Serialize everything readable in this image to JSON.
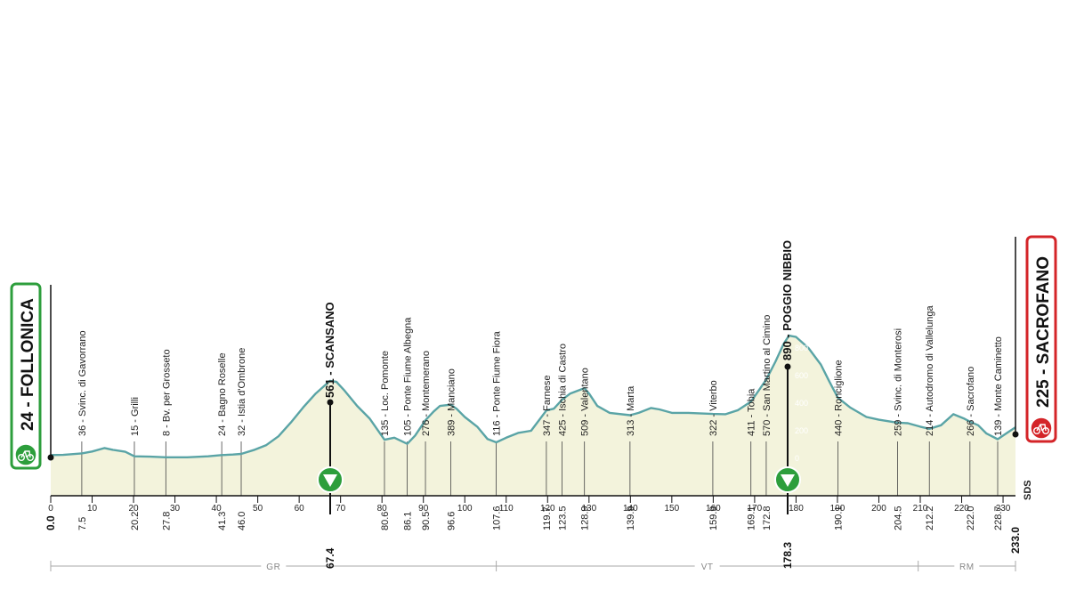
{
  "chart_data": {
    "type": "area",
    "xlim": [
      0,
      233
    ],
    "ylim": [
      0,
      1000
    ],
    "grid": false,
    "x_ticks": [
      10,
      20,
      30,
      40,
      50,
      60,
      70,
      80,
      90,
      100,
      110,
      120,
      130,
      140,
      150,
      160,
      170,
      180,
      190,
      200,
      210,
      220,
      230
    ],
    "elevation_scale": [
      200,
      400,
      600,
      800
    ],
    "profile": [
      [
        0,
        24
      ],
      [
        3,
        25
      ],
      [
        7.5,
        36
      ],
      [
        10,
        50
      ],
      [
        13,
        75
      ],
      [
        15,
        62
      ],
      [
        18,
        48
      ],
      [
        20.2,
        15
      ],
      [
        24,
        12
      ],
      [
        27.8,
        8
      ],
      [
        33,
        8
      ],
      [
        38,
        15
      ],
      [
        41.3,
        24
      ],
      [
        44,
        28
      ],
      [
        46,
        32
      ],
      [
        49,
        60
      ],
      [
        52,
        95
      ],
      [
        55,
        160
      ],
      [
        58,
        260
      ],
      [
        61,
        370
      ],
      [
        64,
        470
      ],
      [
        67.4,
        561
      ],
      [
        69,
        555
      ],
      [
        71,
        490
      ],
      [
        74,
        380
      ],
      [
        77,
        290
      ],
      [
        80.6,
        135
      ],
      [
        83,
        150
      ],
      [
        86.1,
        105
      ],
      [
        88,
        165
      ],
      [
        90.5,
        276
      ],
      [
        92.5,
        340
      ],
      [
        94,
        380
      ],
      [
        96.6,
        389
      ],
      [
        98,
        360
      ],
      [
        100,
        300
      ],
      [
        103,
        230
      ],
      [
        105.5,
        140
      ],
      [
        107.6,
        116
      ],
      [
        110,
        150
      ],
      [
        113,
        185
      ],
      [
        116,
        200
      ],
      [
        119.7,
        347
      ],
      [
        121.5,
        360
      ],
      [
        123.5,
        425
      ],
      [
        125.5,
        470
      ],
      [
        128.9,
        509
      ],
      [
        130,
        470
      ],
      [
        132,
        380
      ],
      [
        135,
        330
      ],
      [
        139.9,
        313
      ],
      [
        142,
        330
      ],
      [
        145,
        365
      ],
      [
        147,
        355
      ],
      [
        150,
        330
      ],
      [
        154,
        330
      ],
      [
        159.9,
        322
      ],
      [
        163,
        320
      ],
      [
        166,
        350
      ],
      [
        169.1,
        411
      ],
      [
        170.5,
        470
      ],
      [
        172.8,
        570
      ],
      [
        175,
        700
      ],
      [
        177,
        830
      ],
      [
        178.3,
        890
      ],
      [
        180,
        880
      ],
      [
        183,
        800
      ],
      [
        186,
        680
      ],
      [
        188,
        560
      ],
      [
        190.1,
        440
      ],
      [
        193,
        370
      ],
      [
        197,
        300
      ],
      [
        200,
        280
      ],
      [
        204.5,
        259
      ],
      [
        207,
        255
      ],
      [
        210,
        230
      ],
      [
        212.2,
        214
      ],
      [
        215,
        240
      ],
      [
        218,
        320
      ],
      [
        220.5,
        290
      ],
      [
        222,
        266
      ],
      [
        224,
        240
      ],
      [
        226,
        180
      ],
      [
        228.7,
        139
      ],
      [
        231,
        185
      ],
      [
        233,
        225
      ]
    ]
  },
  "start": {
    "label": "24 - FOLLONICA",
    "km": "0.0"
  },
  "finish": {
    "label": "225 - SACROFANO",
    "km": "233.0"
  },
  "climbs": [
    {
      "label": "561 - SCANSANO",
      "km": "67.4"
    },
    {
      "label": "890 - POGGIO NIBBIO",
      "km": "178.3"
    }
  ],
  "waypoints": [
    {
      "km": 7.5,
      "label": "36 - Svinc. di Gavorrano",
      "km_label": "7.5"
    },
    {
      "km": 20.2,
      "label": "15 - Grilli",
      "km_label": "20.2"
    },
    {
      "km": 27.8,
      "label": "8 - Bv. per Grosseto",
      "km_label": "27.8"
    },
    {
      "km": 41.3,
      "label": "24 - Bagno Roselle",
      "km_label": "41.3"
    },
    {
      "km": 46.0,
      "label": "32 - Istia d'Ombrone",
      "km_label": "46.0"
    },
    {
      "km": 80.6,
      "label": "135 - Loc. Pomonte",
      "km_label": "80.6"
    },
    {
      "km": 86.1,
      "label": "105 - Ponte Fiume Albegna",
      "km_label": "86.1"
    },
    {
      "km": 90.5,
      "label": "276 - Montemerano",
      "km_label": "90.5"
    },
    {
      "km": 96.6,
      "label": "389 - Manciano",
      "km_label": "96.6"
    },
    {
      "km": 107.6,
      "label": "116 - Ponte Fiume Fiora",
      "km_label": "107.6"
    },
    {
      "km": 119.7,
      "label": "347 - Farnese",
      "km_label": "119.7"
    },
    {
      "km": 123.5,
      "label": "425 - Ischia di Castro",
      "km_label": "123.5"
    },
    {
      "km": 128.9,
      "label": "509 - Valentano",
      "km_label": "128.9"
    },
    {
      "km": 139.9,
      "label": "313 - Marta",
      "km_label": "139.9"
    },
    {
      "km": 159.9,
      "label": "322 - Viterbo",
      "km_label": "159.9"
    },
    {
      "km": 169.1,
      "label": "411 - Tobia",
      "km_label": "169.1"
    },
    {
      "km": 172.8,
      "label": "570 - San Martino al Cimino",
      "km_label": "172.8"
    },
    {
      "km": 190.1,
      "label": "440 - Ronciglione",
      "km_label": "190.1"
    },
    {
      "km": 204.5,
      "label": "259 - Svinc. di Monterosi",
      "km_label": "204.5"
    },
    {
      "km": 212.2,
      "label": "214 - Autodromo di Vallelunga",
      "km_label": "212.2"
    },
    {
      "km": 222.0,
      "label": "266 - Sacrofano",
      "km_label": "222.0"
    },
    {
      "km": 228.7,
      "label": "139 - Monte Caminetto",
      "km_label": "228.7"
    }
  ],
  "regions": [
    {
      "code": "GR",
      "from": 0,
      "to": 107.6
    },
    {
      "code": "VT",
      "from": 107.6,
      "to": 209.5
    },
    {
      "code": "RM",
      "from": 209.5,
      "to": 233
    }
  ],
  "logo": "SDS",
  "colors": {
    "fill": "#f3f3dc",
    "line": "#5aa4a6",
    "start": "#2d9e3c",
    "finish": "#d42428",
    "marker": "#2d9e3c"
  },
  "icons": {
    "start": "bicycle-icon",
    "finish": "bicycle-icon",
    "climb": "triangle-down-icon"
  }
}
